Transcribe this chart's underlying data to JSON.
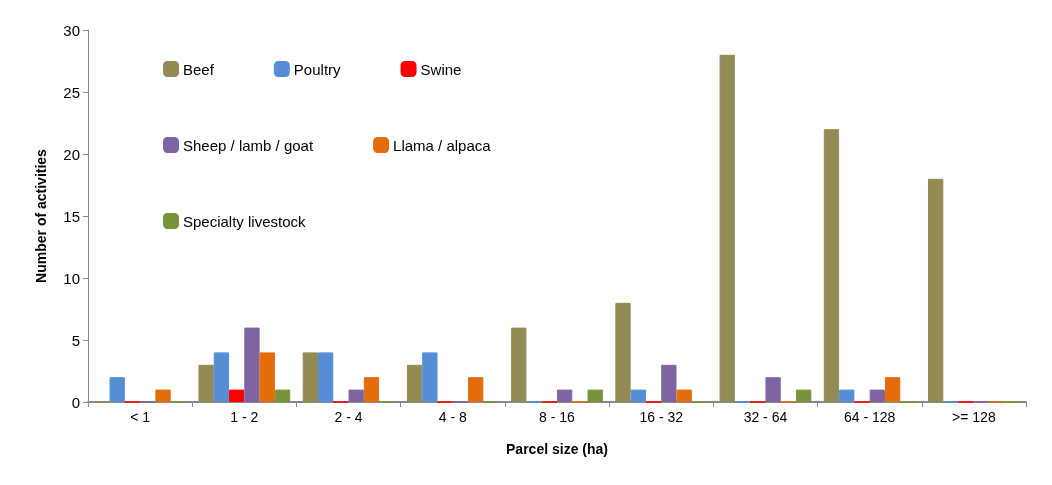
{
  "chart_data": {
    "type": "bar",
    "xlabel": "Parcel size (ha)",
    "ylabel": "Number of activities",
    "categories": [
      "< 1",
      "1 - 2",
      "2 - 4",
      "4 - 8",
      "8 - 16",
      "16 - 32",
      "32 - 64",
      "64 - 128",
      ">= 128"
    ],
    "series": [
      {
        "name": "Beef",
        "color": "#948a54",
        "values": [
          0,
          3,
          4,
          3,
          6,
          8,
          28,
          22,
          18
        ]
      },
      {
        "name": "Poultry",
        "color": "#558ed5",
        "values": [
          2,
          4,
          4,
          4,
          0,
          1,
          0,
          1,
          0
        ]
      },
      {
        "name": "Swine",
        "color": "#ff0000",
        "values": [
          0,
          1,
          0,
          0,
          0,
          0,
          0,
          0,
          0
        ]
      },
      {
        "name": "Sheep / lamb / goat",
        "color": "#8064a2",
        "values": [
          0,
          6,
          1,
          0,
          1,
          3,
          2,
          1,
          0
        ]
      },
      {
        "name": "Llama / alpaca",
        "color": "#e46c0a",
        "values": [
          1,
          4,
          2,
          2,
          0,
          1,
          0,
          2,
          0
        ]
      },
      {
        "name": "Specialty livestock",
        "color": "#77933c",
        "values": [
          0,
          1,
          0,
          0,
          1,
          0,
          1,
          0,
          0
        ]
      }
    ],
    "ylim": [
      0,
      30
    ],
    "yticks": [
      0,
      5,
      10,
      15,
      20,
      25,
      30
    ],
    "grid": false,
    "legend": "top left"
  }
}
